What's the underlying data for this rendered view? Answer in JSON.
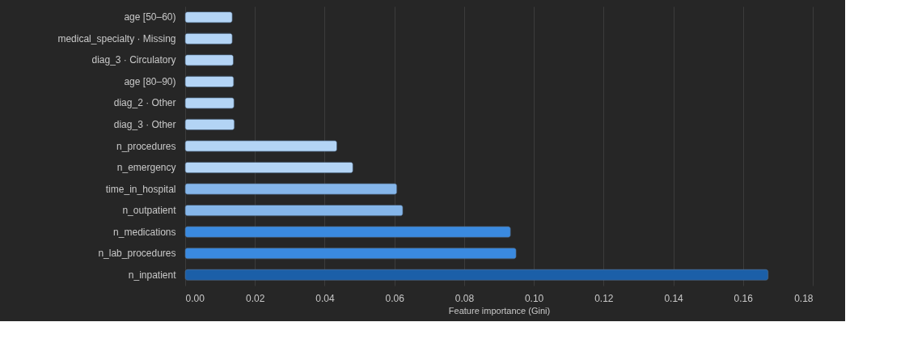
{
  "chart_data": {
    "type": "bar",
    "orientation": "horizontal",
    "xlabel": "Feature importance (Gini)",
    "categories": [
      "age [50–60)",
      "medical_specialty · Missing",
      "diag_3 · Circulatory",
      "age [80–90)",
      "diag_2 · Other",
      "diag_3 · Other",
      "n_procedures",
      "n_emergency",
      "time_in_hospital",
      "n_outpatient",
      "n_medications",
      "n_lab_procedures",
      "n_inpatient"
    ],
    "values": [
      0.0135,
      0.0135,
      0.0138,
      0.0139,
      0.014,
      0.0141,
      0.0435,
      0.0481,
      0.0607,
      0.0624,
      0.0933,
      0.0949,
      0.1672
    ],
    "colors": [
      "#b3d4f5",
      "#b3d4f5",
      "#b3d4f5",
      "#b3d4f5",
      "#b3d4f5",
      "#b3d4f5",
      "#b3d4f5",
      "#b3d4f5",
      "#85b6ea",
      "#85b6ea",
      "#3a8ae0",
      "#3a8ae0",
      "#1b5fa8"
    ],
    "xlim": [
      0,
      0.18
    ],
    "xticks": [
      {
        "value": 0,
        "label": "0.00"
      },
      {
        "value": 0.02,
        "label": "0.02"
      },
      {
        "value": 0.04,
        "label": "0.04"
      },
      {
        "value": 0.06,
        "label": "0.06"
      },
      {
        "value": 0.08,
        "label": "0.08"
      },
      {
        "value": 0.1,
        "label": "0.10"
      },
      {
        "value": 0.12,
        "label": "0.12"
      },
      {
        "value": 0.14,
        "label": "0.14"
      },
      {
        "value": 0.16,
        "label": "0.16"
      },
      {
        "value": 0.18,
        "label": "0.18"
      }
    ],
    "grid": "x"
  }
}
